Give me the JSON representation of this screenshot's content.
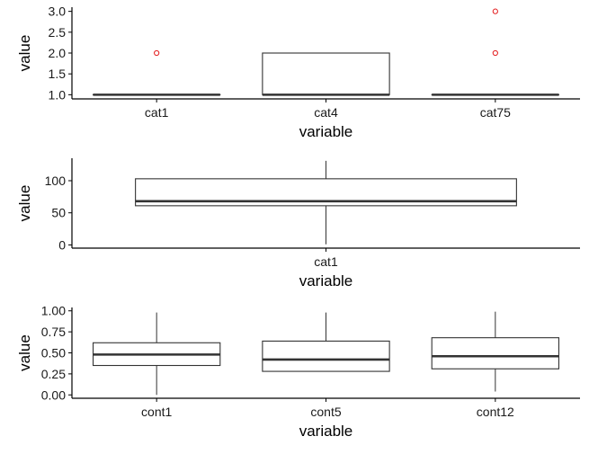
{
  "chart_data": [
    {
      "type": "box",
      "xlabel": "variable",
      "ylabel": "value",
      "ylim": [
        0.9,
        3.1
      ],
      "yticks": [
        1.0,
        1.5,
        2.0,
        2.5,
        3.0
      ],
      "ytick_labels": [
        "1.0",
        "1.5",
        "2.0",
        "2.5",
        "3.0"
      ],
      "categories": [
        "cat1",
        "cat4",
        "cat75"
      ],
      "boxes": [
        {
          "category": "cat1",
          "q1": 1,
          "median": 1,
          "q3": 1,
          "whisker_low": 1,
          "whisker_high": 1,
          "outliers": [
            2
          ]
        },
        {
          "category": "cat4",
          "q1": 1,
          "median": 1,
          "q3": 2,
          "whisker_low": 1,
          "whisker_high": 2,
          "outliers": []
        },
        {
          "category": "cat75",
          "q1": 1,
          "median": 1,
          "q3": 1,
          "whisker_low": 1,
          "whisker_high": 1,
          "outliers": [
            2,
            3
          ]
        }
      ]
    },
    {
      "type": "box",
      "xlabel": "variable",
      "ylabel": "value",
      "ylim": [
        -5,
        135
      ],
      "yticks": [
        0,
        50,
        100
      ],
      "ytick_labels": [
        "0",
        "50",
        "100"
      ],
      "categories": [
        "cat1"
      ],
      "boxes": [
        {
          "category": "cat1",
          "q1": 61,
          "median": 68,
          "q3": 103,
          "whisker_low": 1,
          "whisker_high": 131,
          "outliers": []
        }
      ]
    },
    {
      "type": "box",
      "xlabel": "variable",
      "ylabel": "value",
      "ylim": [
        -0.04,
        1.04
      ],
      "yticks": [
        0,
        0.25,
        0.5,
        0.75,
        1.0
      ],
      "ytick_labels": [
        "0.00",
        "0.25",
        "0.50",
        "0.75",
        "1.00"
      ],
      "categories": [
        "cont1",
        "cont5",
        "cont12"
      ],
      "boxes": [
        {
          "category": "cont1",
          "q1": 0.35,
          "median": 0.48,
          "q3": 0.62,
          "whisker_low": 0.0,
          "whisker_high": 0.98,
          "outliers": []
        },
        {
          "category": "cont5",
          "q1": 0.28,
          "median": 0.42,
          "q3": 0.64,
          "whisker_low": 0.28,
          "whisker_high": 0.98,
          "outliers": []
        },
        {
          "category": "cont12",
          "q1": 0.31,
          "median": 0.46,
          "q3": 0.68,
          "whisker_low": 0.04,
          "whisker_high": 0.99,
          "outliers": []
        }
      ]
    }
  ],
  "colors": {
    "box_line": "#333333",
    "axis_line": "#000000",
    "outlier": "#e31a1c"
  }
}
